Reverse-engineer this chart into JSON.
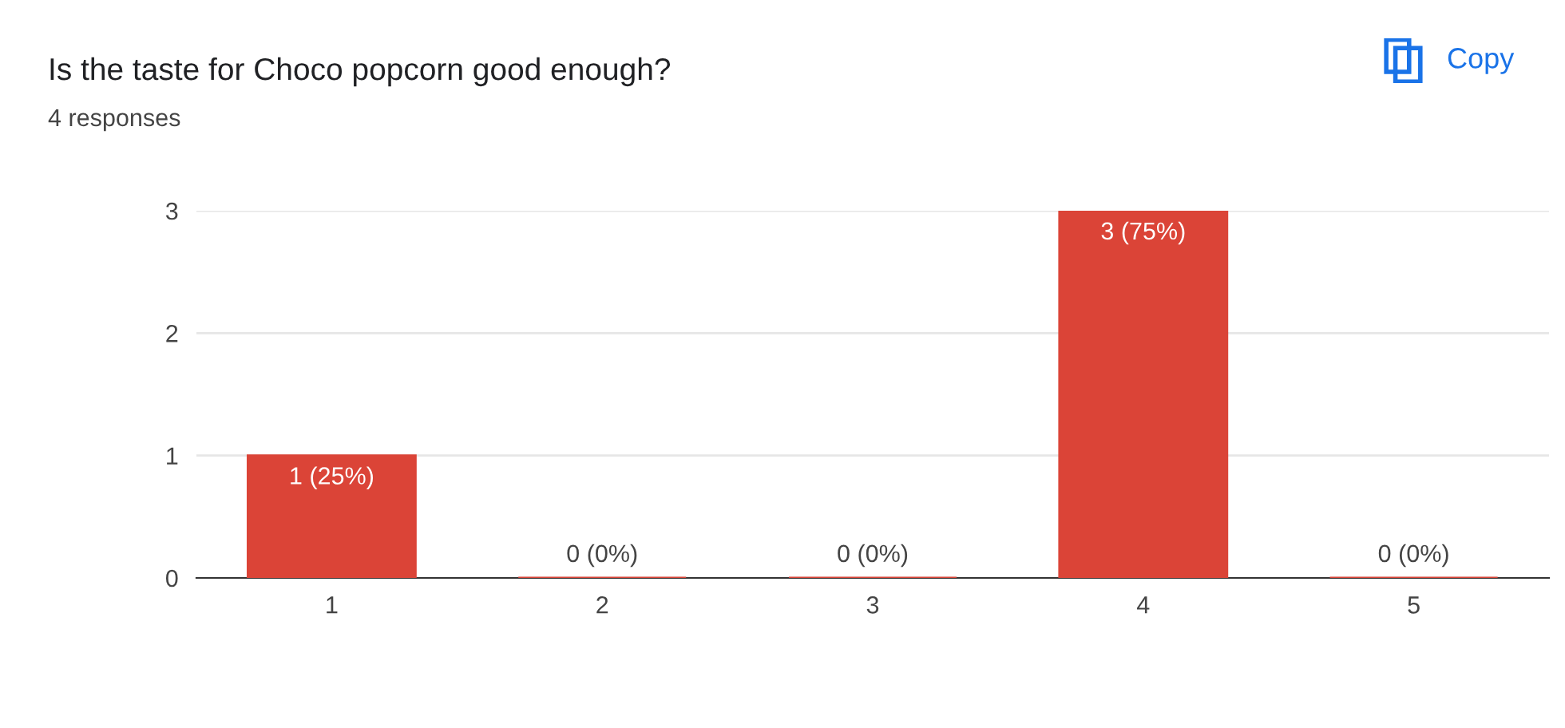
{
  "chart_data": {
    "type": "bar",
    "title": "Is the taste for Choco popcorn good enough?",
    "subtitle": "4 responses",
    "annotations": [
      "Copy"
    ],
    "categories": [
      "1",
      "2",
      "3",
      "4",
      "5"
    ],
    "values": [
      1,
      0,
      0,
      3,
      0
    ],
    "value_labels": [
      "1 (25%)",
      "0 (0%)",
      "0 (0%)",
      "3 (75%)",
      "0 (0%)"
    ],
    "color": "#db4437",
    "ylim": [
      0,
      3
    ],
    "yticks": [
      0,
      1,
      2,
      3
    ],
    "grid": "y",
    "legend": false
  }
}
